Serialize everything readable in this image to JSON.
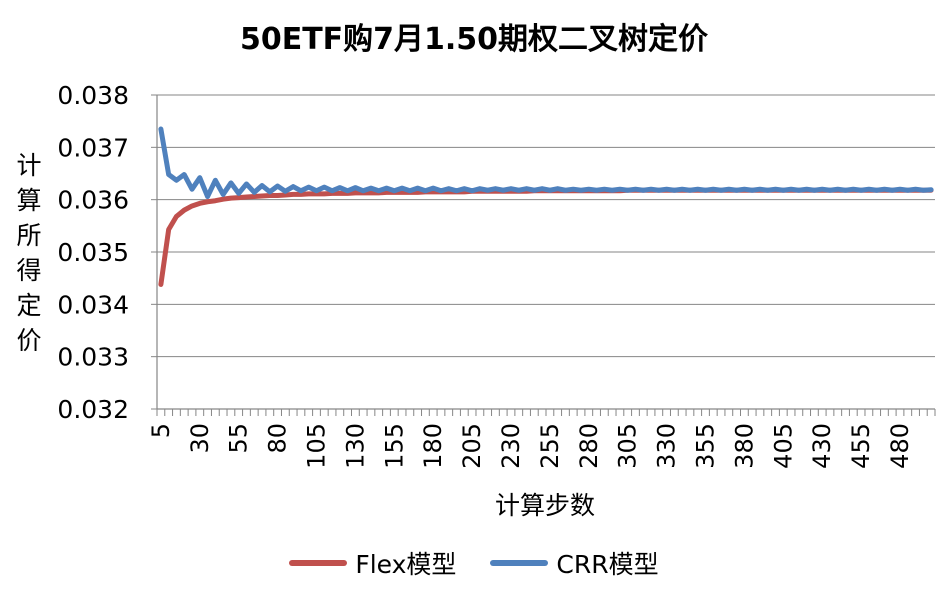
{
  "chart_data": {
    "type": "line",
    "title": "50ETF购7月1.50期权二叉树定价",
    "xlabel": "计算步数",
    "ylabel": "计算所得定价",
    "ylim": [
      0.032,
      0.038
    ],
    "yticks": [
      "0.032",
      "0.033",
      "0.034",
      "0.035",
      "0.036",
      "0.037",
      "0.038"
    ],
    "x_start": 5,
    "x_end": 500,
    "x_step": 5,
    "xtick_labels": [
      "5",
      "30",
      "55",
      "80",
      "105",
      "130",
      "155",
      "180",
      "205",
      "230",
      "255",
      "280",
      "305",
      "330",
      "355",
      "380",
      "405",
      "430",
      "455",
      "480"
    ],
    "grid": "horizontal",
    "legend_position": "bottom",
    "series": [
      {
        "name": "Flex模型",
        "color": "#c0504d",
        "values": [
          0.03438,
          0.03543,
          0.03568,
          0.0358,
          0.03588,
          0.03593,
          0.03596,
          0.03598,
          0.03601,
          0.03603,
          0.03604,
          0.03605,
          0.03606,
          0.03607,
          0.03608,
          0.03608,
          0.03609,
          0.0361,
          0.0361,
          0.03611,
          0.03611,
          0.03611,
          0.03612,
          0.03612,
          0.03612,
          0.03613,
          0.03613,
          0.03613,
          0.03613,
          0.03614,
          0.03614,
          0.03614,
          0.03614,
          0.03614,
          0.03615,
          0.03615,
          0.03615,
          0.03615,
          0.03615,
          0.03615,
          0.03616,
          0.03616,
          0.03616,
          0.03616,
          0.03616,
          0.03616,
          0.03616,
          0.03616,
          0.03617,
          0.03617,
          0.03617,
          0.03617,
          0.03617,
          0.03617,
          0.03617,
          0.03617,
          0.03617,
          0.03617,
          0.03617,
          0.03617,
          0.03618,
          0.03618,
          0.03618,
          0.03618,
          0.03618,
          0.03618,
          0.03618,
          0.03618,
          0.03618,
          0.03618,
          0.03618,
          0.03618,
          0.03618,
          0.03618,
          0.03618,
          0.03618,
          0.03618,
          0.03618,
          0.03618,
          0.03618,
          0.03618,
          0.03618,
          0.03618,
          0.03618,
          0.03618,
          0.03618,
          0.03618,
          0.03618,
          0.03618,
          0.03618,
          0.03618,
          0.03618,
          0.03618,
          0.03618,
          0.03618,
          0.03618,
          0.03618,
          0.03618,
          0.03618,
          0.03618
        ]
      },
      {
        "name": "CRR模型",
        "color": "#4f81bd",
        "values": [
          0.03735,
          0.03648,
          0.03637,
          0.03648,
          0.0362,
          0.03642,
          0.03606,
          0.03637,
          0.0361,
          0.03632,
          0.03612,
          0.0363,
          0.03614,
          0.03627,
          0.03615,
          0.03626,
          0.03616,
          0.03625,
          0.03617,
          0.03624,
          0.03617,
          0.03624,
          0.03617,
          0.03623,
          0.03617,
          0.03623,
          0.03617,
          0.03622,
          0.03617,
          0.03622,
          0.03617,
          0.03622,
          0.03617,
          0.03622,
          0.03617,
          0.03622,
          0.03617,
          0.03621,
          0.03617,
          0.03621,
          0.03617,
          0.03621,
          0.03618,
          0.03621,
          0.03618,
          0.03621,
          0.03618,
          0.03621,
          0.03618,
          0.03621,
          0.03618,
          0.03621,
          0.03618,
          0.0362,
          0.03618,
          0.0362,
          0.03618,
          0.0362,
          0.03618,
          0.0362,
          0.03618,
          0.0362,
          0.03618,
          0.0362,
          0.03618,
          0.0362,
          0.03618,
          0.0362,
          0.03618,
          0.0362,
          0.03618,
          0.0362,
          0.03618,
          0.0362,
          0.03618,
          0.0362,
          0.03618,
          0.0362,
          0.03618,
          0.0362,
          0.03618,
          0.0362,
          0.03618,
          0.0362,
          0.03618,
          0.0362,
          0.03618,
          0.0362,
          0.03618,
          0.0362,
          0.03618,
          0.0362,
          0.03618,
          0.0362,
          0.03618,
          0.0362,
          0.03618,
          0.0362,
          0.03618,
          0.03619
        ]
      }
    ]
  }
}
